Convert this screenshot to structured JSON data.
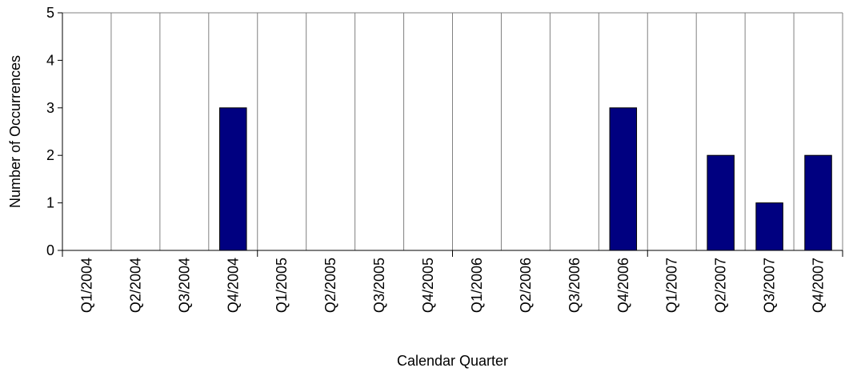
{
  "chart_data": {
    "type": "bar",
    "title": "",
    "xlabel": "Calendar Quarter",
    "ylabel": "Number of Occurrences",
    "ylim": [
      0,
      5
    ],
    "yticks": [
      0,
      1,
      2,
      3,
      4,
      5
    ],
    "categories": [
      "Q1/2004",
      "Q2/2004",
      "Q3/2004",
      "Q4/2004",
      "Q1/2005",
      "Q2/2005",
      "Q3/2005",
      "Q4/2005",
      "Q1/2006",
      "Q2/2006",
      "Q3/2006",
      "Q4/2006",
      "Q1/2007",
      "Q2/2007",
      "Q3/2007",
      "Q4/2007"
    ],
    "series": [
      {
        "values": [
          0,
          0,
          0,
          3,
          0,
          0,
          0,
          0,
          0,
          0,
          0,
          3,
          0,
          2,
          1,
          2
        ]
      }
    ],
    "bar_color": "#000080",
    "grid": {
      "vertical": true,
      "horizontal": false,
      "color": "#808080"
    },
    "legend": "none"
  }
}
